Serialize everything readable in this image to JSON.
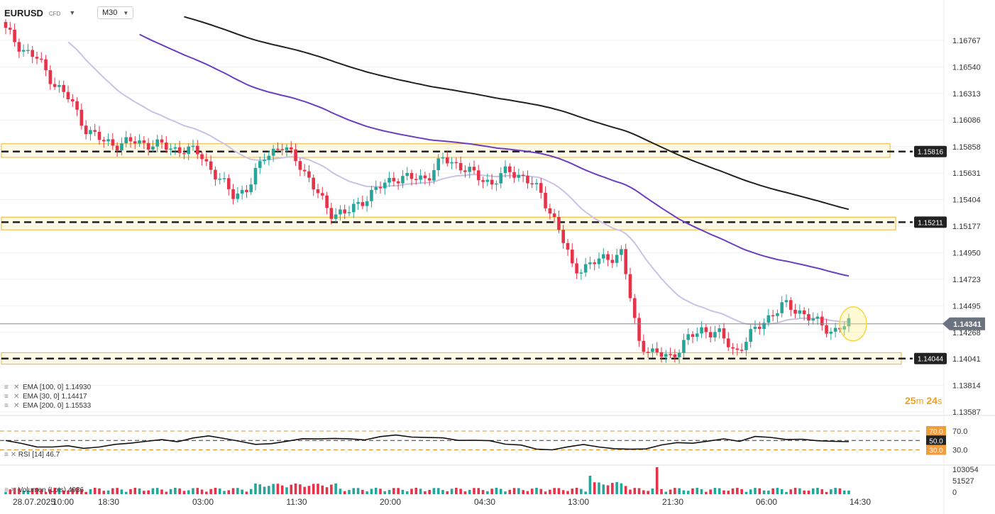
{
  "symbol": {
    "name": "EURUSD",
    "type": "CFD",
    "dropdown_icon": "caret-down-icon"
  },
  "timeframe": {
    "value": "M30",
    "dropdown_icon": "caret-down-icon"
  },
  "indicators": [
    {
      "label": "EMA [100, 0] 1.14930"
    },
    {
      "label": "EMA [30, 0] 1.14417"
    },
    {
      "label": "EMA [200, 0] 1.15533"
    }
  ],
  "countdown": {
    "min": "25",
    "min_unit": "m",
    "sec": "24",
    "sec_unit": "s"
  },
  "rsi_legend": "RSI [14] 46.7",
  "volume_legend": "Volumen (Lots) 4936",
  "colors": {
    "up": "#26a69a",
    "down": "#e5334a",
    "ema30": "#c9c2e6",
    "ema100": "#6a3fbf",
    "ema200": "#222222",
    "zone": "#f0b429"
  },
  "chart_data": [
    {
      "type": "candlestick",
      "title": "EURUSD M30",
      "y_ticks": [
        "1.16767",
        "1.16540",
        "1.16313",
        "1.16086",
        "1.15858",
        "1.15631",
        "1.15404",
        "1.15177",
        "1.14950",
        "1.14723",
        "1.14495",
        "1.14268",
        "1.14041",
        "1.13814",
        "1.13587"
      ],
      "ylim": [
        1.13587,
        1.16767
      ],
      "x_ticks": [
        "28.07.2025",
        "10:00",
        "18:30",
        "03:00",
        "11:30",
        "20:00",
        "04:30",
        "13:00",
        "21:30",
        "06:00",
        "14:30"
      ],
      "current_price": "1.14341",
      "levels": [
        "1.15816",
        "1.15211",
        "1.14044"
      ],
      "ema_values": {
        "ema100": 1.1493,
        "ema30": 1.14417,
        "ema200": 1.15533
      },
      "close_path": [
        1.1685,
        1.167,
        1.166,
        1.164,
        1.1625,
        1.16,
        1.159,
        1.1588,
        1.159,
        1.1588,
        1.1585,
        1.1583,
        1.158,
        1.156,
        1.1545,
        1.155,
        1.158,
        1.1585,
        1.1575,
        1.155,
        1.153,
        1.1528,
        1.154,
        1.155,
        1.156,
        1.1558,
        1.156,
        1.1575,
        1.157,
        1.156,
        1.1555,
        1.1565,
        1.156,
        1.1545,
        1.152,
        1.148,
        1.1485,
        1.149,
        1.1495,
        1.142,
        1.1408,
        1.1406,
        1.142,
        1.143,
        1.1425,
        1.141,
        1.1425,
        1.144,
        1.145,
        1.1445,
        1.1435,
        1.1428,
        1.1434
      ]
    },
    {
      "type": "line",
      "title": "RSI",
      "series_name": "RSI [14]",
      "value": 46.7,
      "levels": [
        "70.0",
        "50.0",
        "30.0"
      ],
      "ylim": [
        0,
        100
      ],
      "y_ticks": [
        "70.0",
        "30.0"
      ],
      "path": [
        50,
        42,
        38,
        36,
        37,
        35,
        36,
        40,
        46,
        48,
        50,
        49,
        55,
        58,
        56,
        48,
        40,
        45,
        48,
        52,
        55,
        54,
        52,
        53,
        58,
        60,
        59,
        56,
        54,
        52,
        50,
        48,
        44,
        40,
        30,
        32,
        36,
        40,
        38,
        32,
        30,
        34,
        40,
        44,
        46,
        48,
        52,
        50,
        58,
        55,
        54,
        52,
        48,
        50,
        46.7
      ]
    },
    {
      "type": "bar",
      "title": "Volume",
      "series_name": "Volumen (Lots)",
      "value": 4936,
      "y_ticks": [
        "103054",
        "51527",
        "0"
      ],
      "ylim": [
        0,
        103054
      ]
    }
  ]
}
